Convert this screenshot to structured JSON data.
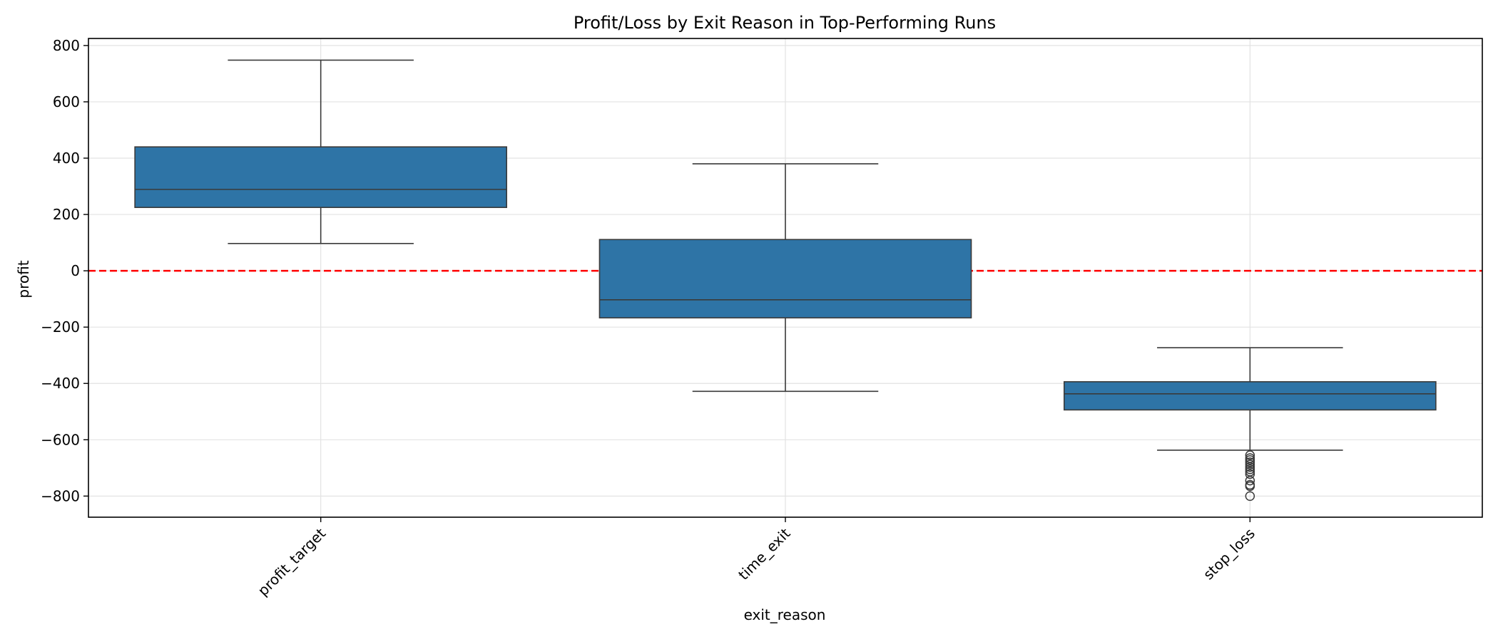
{
  "chart_data": {
    "type": "box",
    "title": "Profit/Loss by Exit Reason in Top-Performing Runs",
    "xlabel": "exit_reason",
    "ylabel": "profit",
    "ylim": [
      -875,
      825
    ],
    "yticks": [
      800,
      600,
      400,
      200,
      0,
      -200,
      -400,
      -600,
      -800
    ],
    "ytick_labels": [
      "800",
      "600",
      "400",
      "200",
      "0",
      "−200",
      "−400",
      "−600",
      "−800"
    ],
    "grid": true,
    "box_color": "#2e74a6",
    "reference_line": {
      "y": 0,
      "color": "#ff0000",
      "style": "dashed"
    },
    "categories": [
      "profit_target",
      "time_exit",
      "stop_loss"
    ],
    "boxes": [
      {
        "category": "profit_target",
        "whislo": 97,
        "q1": 225,
        "median": 289,
        "q3": 440,
        "whishi": 748,
        "fliers": []
      },
      {
        "category": "time_exit",
        "whislo": -428,
        "q1": -167,
        "median": -103,
        "q3": 111,
        "whishi": 380,
        "fliers": []
      },
      {
        "category": "stop_loss",
        "whislo": -637,
        "q1": -494,
        "median": -437,
        "q3": -394,
        "whishi": -273,
        "fliers": [
          -655,
          -665,
          -672,
          -680,
          -688,
          -697,
          -705,
          -713,
          -722,
          -745,
          -760,
          -765,
          -800
        ]
      }
    ]
  }
}
